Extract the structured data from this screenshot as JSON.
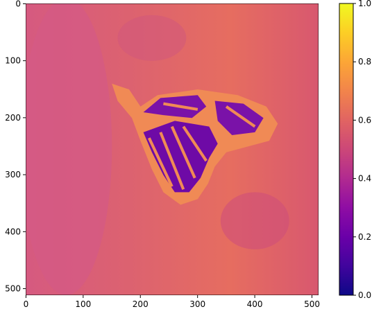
{
  "chart_data": {
    "type": "image",
    "xlim": [
      -0.5,
      511.5
    ],
    "ylim": [
      511.5,
      -0.5
    ],
    "xticks": [
      0,
      100,
      200,
      300,
      400,
      500
    ],
    "yticks": [
      0,
      100,
      200,
      300,
      400,
      500
    ],
    "colorbar": {
      "colormap": "plasma",
      "lim": [
        0,
        1
      ],
      "ticks": [
        {
          "value": 0,
          "label": "0.0"
        },
        {
          "value": 0.2,
          "label": "0.2"
        },
        {
          "value": 0.4,
          "label": "0.4"
        },
        {
          "value": 0.6,
          "label": "0.6"
        },
        {
          "value": 0.8,
          "label": "0.8"
        },
        {
          "value": 1,
          "label": "1.0"
        }
      ]
    }
  }
}
